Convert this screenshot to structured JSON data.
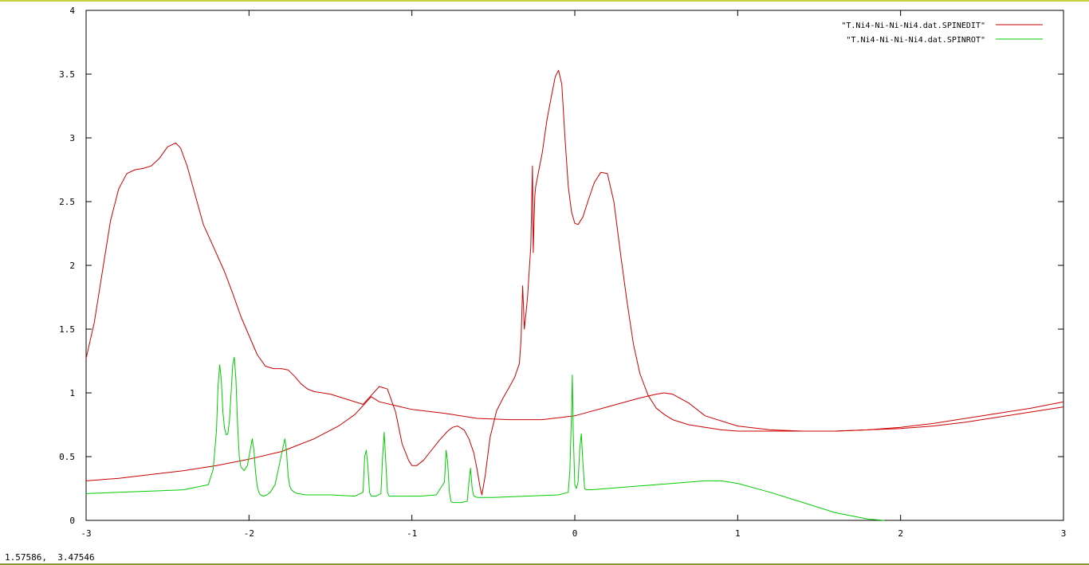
{
  "status": {
    "coords": "1.57586,  3.47546"
  },
  "chart_data": {
    "type": "line",
    "title": "",
    "xlabel": "",
    "ylabel": "",
    "xlim": [
      -3,
      3
    ],
    "ylim": [
      0,
      4
    ],
    "grid": false,
    "legend_position": "top-right",
    "x_ticks": [
      "-3",
      "-2",
      "-1",
      "0",
      "1",
      "2",
      "3"
    ],
    "x_tick_values": [
      -3,
      -2,
      -1,
      0,
      1,
      2,
      3
    ],
    "y_ticks": [
      "0",
      "0.5",
      "1",
      "1.5",
      "2",
      "2.5",
      "3",
      "3.5",
      "4"
    ],
    "y_tick_values": [
      0,
      0.5,
      1,
      1.5,
      2,
      2.5,
      3,
      3.5,
      4
    ],
    "series": [
      {
        "name": "\"T.Ni4-Ni-Ni-Ni4.dat.SPINEDIT\"",
        "color": "#cc0000",
        "x": [
          -3.0,
          -2.95,
          -2.9,
          -2.85,
          -2.8,
          -2.75,
          -2.7,
          -2.65,
          -2.6,
          -2.55,
          -2.5,
          -2.45,
          -2.42,
          -2.38,
          -2.33,
          -2.28,
          -2.22,
          -2.15,
          -2.1,
          -2.05,
          -2.0,
          -1.95,
          -1.9,
          -1.85,
          -1.8,
          -1.76,
          -1.72,
          -1.68,
          -1.64,
          -1.6,
          -1.5,
          -1.4,
          -1.3,
          -1.25,
          -1.2,
          -1.15,
          -1.1,
          -1.06,
          -1.02,
          -1.0,
          -0.97,
          -0.93,
          -0.88,
          -0.83,
          -0.78,
          -0.75,
          -0.72,
          -0.68,
          -0.65,
          -0.62,
          -0.6,
          -0.58,
          -0.57,
          -0.55,
          -0.52,
          -0.48,
          -0.44,
          -0.4,
          -0.37,
          -0.34,
          -0.33,
          -0.32,
          -0.31,
          -0.3,
          -0.29,
          -0.27,
          -0.26,
          -0.255,
          -0.25,
          -0.245,
          -0.24,
          -0.22,
          -0.2,
          -0.17,
          -0.14,
          -0.12,
          -0.1,
          -0.08,
          -0.06,
          -0.04,
          -0.02,
          0.0,
          0.02,
          0.05,
          0.08,
          0.12,
          0.16,
          0.2,
          0.24,
          0.28,
          0.32,
          0.36,
          0.4,
          0.45,
          0.5,
          0.55,
          0.6,
          0.7,
          0.8,
          0.9,
          1.0,
          1.1,
          1.2,
          1.3,
          1.4,
          1.6,
          1.8,
          2.0,
          2.2,
          2.4,
          2.6,
          2.8,
          3.0
        ],
        "y": [
          1.27,
          1.55,
          1.95,
          2.35,
          2.6,
          2.72,
          2.75,
          2.76,
          2.78,
          2.84,
          2.93,
          2.96,
          2.92,
          2.78,
          2.55,
          2.32,
          2.15,
          1.95,
          1.78,
          1.6,
          1.45,
          1.3,
          1.21,
          1.19,
          1.19,
          1.18,
          1.13,
          1.07,
          1.03,
          1.01,
          0.99,
          0.95,
          0.91,
          0.98,
          1.05,
          1.03,
          0.85,
          0.6,
          0.47,
          0.43,
          0.43,
          0.47,
          0.55,
          0.63,
          0.7,
          0.73,
          0.74,
          0.71,
          0.64,
          0.53,
          0.4,
          0.25,
          0.2,
          0.35,
          0.65,
          0.86,
          0.96,
          1.05,
          1.12,
          1.23,
          1.42,
          1.84,
          1.5,
          1.62,
          1.75,
          2.15,
          2.78,
          2.1,
          2.35,
          2.55,
          2.62,
          2.75,
          2.88,
          3.15,
          3.35,
          3.48,
          3.53,
          3.42,
          3.0,
          2.62,
          2.42,
          2.33,
          2.32,
          2.38,
          2.5,
          2.65,
          2.73,
          2.72,
          2.5,
          2.1,
          1.72,
          1.38,
          1.15,
          0.98,
          0.88,
          0.83,
          0.79,
          0.75,
          0.73,
          0.71,
          0.7,
          0.7,
          0.7,
          0.7,
          0.7,
          0.7,
          0.71,
          0.72,
          0.74,
          0.77,
          0.81,
          0.85,
          0.89
        ]
      },
      {
        "name": "",
        "color": "#cc0000",
        "x": [
          -3.0,
          -2.8,
          -2.6,
          -2.4,
          -2.2,
          -2.0,
          -1.8,
          -1.6,
          -1.45,
          -1.35,
          -1.3,
          -1.25,
          -1.2,
          -1.1,
          -1.0,
          -0.8,
          -0.6,
          -0.4,
          -0.2,
          0.0,
          0.2,
          0.4,
          0.5,
          0.55,
          0.6,
          0.7,
          0.8,
          1.0,
          1.2,
          1.4,
          1.6,
          1.8,
          2.0,
          2.2,
          2.4,
          2.6,
          2.8,
          3.0
        ],
        "y": [
          0.31,
          0.33,
          0.36,
          0.39,
          0.43,
          0.48,
          0.54,
          0.64,
          0.74,
          0.83,
          0.9,
          0.97,
          0.93,
          0.9,
          0.87,
          0.84,
          0.8,
          0.79,
          0.79,
          0.82,
          0.89,
          0.96,
          0.99,
          1.0,
          0.99,
          0.92,
          0.82,
          0.74,
          0.71,
          0.7,
          0.7,
          0.71,
          0.73,
          0.76,
          0.8,
          0.84,
          0.88,
          0.93
        ]
      },
      {
        "name": "\"T.Ni4-Ni-Ni-Ni4.dat.SPINROT\"",
        "color": "#00cc00",
        "x": [
          -3.0,
          -2.8,
          -2.6,
          -2.4,
          -2.25,
          -2.22,
          -2.2,
          -2.19,
          -2.18,
          -2.17,
          -2.16,
          -2.15,
          -2.14,
          -2.13,
          -2.12,
          -2.11,
          -2.1,
          -2.09,
          -2.08,
          -2.07,
          -2.06,
          -2.05,
          -2.03,
          -2.01,
          -1.99,
          -1.98,
          -1.97,
          -1.96,
          -1.95,
          -1.94,
          -1.93,
          -1.91,
          -1.89,
          -1.87,
          -1.84,
          -1.8,
          -1.78,
          -1.77,
          -1.76,
          -1.75,
          -1.74,
          -1.72,
          -1.7,
          -1.65,
          -1.5,
          -1.35,
          -1.3,
          -1.29,
          -1.28,
          -1.27,
          -1.26,
          -1.25,
          -1.22,
          -1.19,
          -1.18,
          -1.17,
          -1.16,
          -1.15,
          -1.14,
          -1.12,
          -1.05,
          -0.95,
          -0.85,
          -0.8,
          -0.79,
          -0.78,
          -0.77,
          -0.76,
          -0.75,
          -0.74,
          -0.7,
          -0.66,
          -0.65,
          -0.64,
          -0.63,
          -0.62,
          -0.6,
          -0.5,
          -0.3,
          -0.1,
          -0.04,
          -0.03,
          -0.02,
          -0.015,
          -0.01,
          0.0,
          0.01,
          0.02,
          0.03,
          0.04,
          0.05,
          0.06,
          0.07,
          0.1,
          0.2,
          0.4,
          0.6,
          0.8,
          0.9,
          1.0,
          1.2,
          1.4,
          1.6,
          1.8,
          1.9
        ],
        "y": [
          0.21,
          0.22,
          0.23,
          0.24,
          0.28,
          0.4,
          0.7,
          1.05,
          1.22,
          1.1,
          0.85,
          0.72,
          0.67,
          0.68,
          0.78,
          1.0,
          1.22,
          1.28,
          1.1,
          0.75,
          0.5,
          0.42,
          0.39,
          0.43,
          0.57,
          0.64,
          0.55,
          0.38,
          0.27,
          0.22,
          0.2,
          0.19,
          0.2,
          0.22,
          0.28,
          0.52,
          0.64,
          0.55,
          0.35,
          0.27,
          0.24,
          0.22,
          0.21,
          0.2,
          0.2,
          0.19,
          0.22,
          0.5,
          0.55,
          0.42,
          0.22,
          0.19,
          0.19,
          0.21,
          0.5,
          0.69,
          0.45,
          0.22,
          0.19,
          0.19,
          0.19,
          0.19,
          0.2,
          0.3,
          0.55,
          0.45,
          0.22,
          0.15,
          0.14,
          0.14,
          0.14,
          0.15,
          0.3,
          0.41,
          0.25,
          0.19,
          0.18,
          0.18,
          0.19,
          0.2,
          0.22,
          0.4,
          0.85,
          1.14,
          0.7,
          0.28,
          0.25,
          0.3,
          0.55,
          0.68,
          0.45,
          0.25,
          0.24,
          0.24,
          0.25,
          0.27,
          0.29,
          0.31,
          0.31,
          0.29,
          0.22,
          0.14,
          0.06,
          0.01,
          0.0
        ]
      }
    ]
  }
}
